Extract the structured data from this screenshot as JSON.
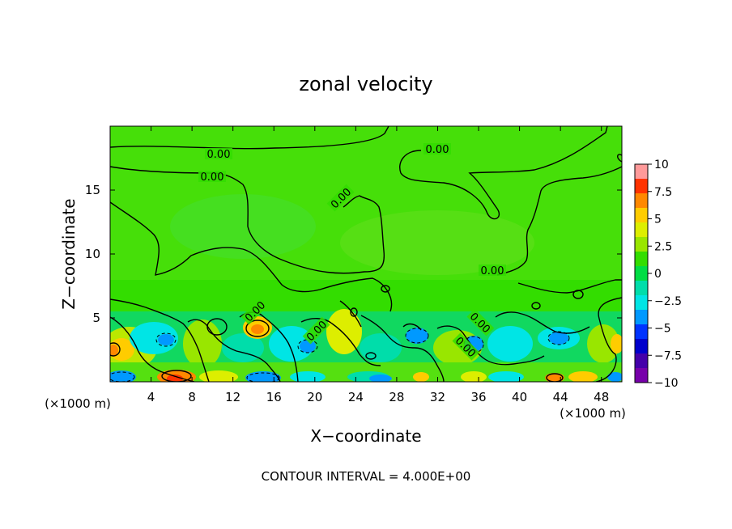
{
  "chart_data": {
    "type": "heatmap",
    "title": "zonal velocity",
    "xlabel": "X−coordinate",
    "ylabel": "Z−coordinate",
    "x_unit_left": "(×1000 m)",
    "x_unit_right": "(×1000 m)",
    "xlim": [
      0,
      50
    ],
    "ylim": [
      0,
      20
    ],
    "x_ticks": [
      4,
      8,
      12,
      16,
      20,
      24,
      28,
      32,
      36,
      40,
      44,
      48
    ],
    "y_ticks": [
      5,
      10,
      15
    ],
    "colorbar": {
      "ticks": [
        "10",
        "7.5",
        "5",
        "2.5",
        "0",
        "−2.5",
        "−5",
        "−7.5",
        "−10"
      ],
      "range": [
        -10,
        10
      ],
      "colors": [
        "#ff9a9a",
        "#ff3300",
        "#ff8800",
        "#ffcc00",
        "#ddee00",
        "#99e600",
        "#33dd00",
        "#00dd44",
        "#00ddaa",
        "#00e5e5",
        "#0099ff",
        "#0033ff",
        "#0000cc",
        "#4400aa",
        "#7700aa"
      ]
    },
    "contour_labels": [
      "0.00",
      "0.00",
      "0.00",
      "0.00",
      "0.00",
      "0.00",
      "0.00",
      "0.00",
      "0.00"
    ],
    "footer": "CONTOUR INTERVAL = 4.000E+00"
  }
}
